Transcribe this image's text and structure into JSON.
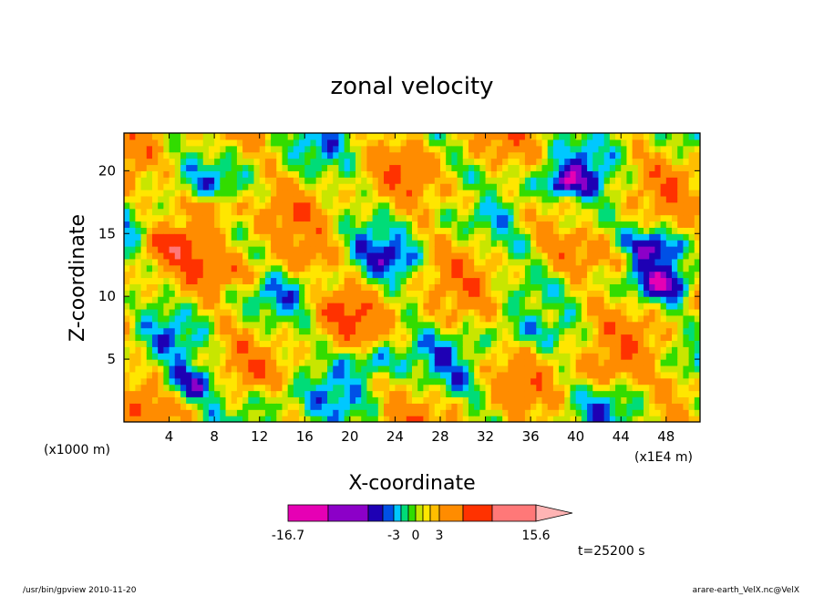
{
  "chart_data": {
    "type": "heatmap",
    "title": "zonal velocity",
    "xlabel": "X-coordinate",
    "ylabel": "Z-coordinate",
    "x_unit_label": "(x1E4 m)",
    "y_unit_label": "(x1000 m)",
    "x_ticks": [
      "4",
      "8",
      "12",
      "16",
      "20",
      "24",
      "28",
      "32",
      "36",
      "40",
      "44",
      "48"
    ],
    "y_ticks": [
      "5",
      "10",
      "15",
      "20"
    ],
    "xlim": [
      0,
      51
    ],
    "ylim": [
      0,
      23
    ],
    "colorbar": {
      "min_label": "-16.7",
      "max_label": "15.6",
      "mid_labels": [
        "-3",
        "0",
        "3"
      ],
      "colors": [
        "#e600b4",
        "#8c00c8",
        "#1e00b4",
        "#0050e6",
        "#00c8ff",
        "#00dc78",
        "#32dc00",
        "#c8e600",
        "#ffe600",
        "#ffbe00",
        "#ff8c00",
        "#ff3200",
        "#ff7878"
      ],
      "extend_color": "#ffb4b4"
    },
    "time_label": "t=25200 s",
    "levels": [
      -16.7,
      -8,
      -6,
      -4,
      -3,
      -2,
      -1,
      0,
      1,
      2,
      3,
      6,
      10,
      15.6
    ],
    "anomalies": [
      {
        "x": 4,
        "z": 14,
        "v": 5
      },
      {
        "x": 8,
        "z": 17,
        "v": 6
      },
      {
        "x": 11,
        "z": 12,
        "v": 4
      },
      {
        "x": 16,
        "z": 13,
        "v": 3
      },
      {
        "x": 19,
        "z": 9,
        "v": 2.5
      },
      {
        "x": 22,
        "z": 5,
        "v": -5
      },
      {
        "x": 24,
        "z": 13,
        "v": -3
      },
      {
        "x": 28,
        "z": 8,
        "v": 2
      },
      {
        "x": 31,
        "z": 18,
        "v": 4
      },
      {
        "x": 34,
        "z": 7,
        "v": -2
      },
      {
        "x": 37,
        "z": 9,
        "v": 3
      },
      {
        "x": 39,
        "z": 19,
        "v": -7
      },
      {
        "x": 40,
        "z": 16,
        "v": -4
      },
      {
        "x": 44,
        "z": 13,
        "v": 3
      },
      {
        "x": 48,
        "z": 11,
        "v": -6
      },
      {
        "x": 47,
        "z": 14,
        "v": -5
      },
      {
        "x": 42,
        "z": 4,
        "v": 3
      },
      {
        "x": 6,
        "z": 3,
        "v": -6
      },
      {
        "x": 13,
        "z": 2,
        "v": -3
      },
      {
        "x": 30,
        "z": 3,
        "v": -2
      },
      {
        "x": 2,
        "z": 20,
        "v": -2
      },
      {
        "x": 50,
        "z": 3,
        "v": 4
      },
      {
        "x": 26,
        "z": 20,
        "v": 1
      },
      {
        "x": 35,
        "z": 14,
        "v": -2
      }
    ]
  },
  "footer": {
    "left": "/usr/bin/gpview   2010-11-20",
    "right": "arare-earth_VelX.nc@VelX"
  }
}
